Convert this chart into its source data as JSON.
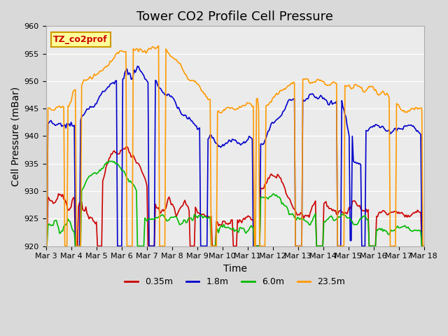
{
  "title": "Tower CO2 Profile Cell Pressure",
  "xlabel": "Time",
  "ylabel": "Cell Pressure (mBar)",
  "ylim": [
    920,
    960
  ],
  "xlim": [
    0,
    15
  ],
  "xtick_labels": [
    "Mar 3",
    "Mar 4",
    "Mar 5",
    "Mar 6",
    "Mar 7",
    "Mar 8",
    "Mar 9",
    "Mar 10",
    "Mar 11",
    "Mar 12",
    "Mar 13",
    "Mar 14",
    "Mar 15",
    "Mar 16",
    "Mar 17",
    "Mar 18"
  ],
  "xtick_positions": [
    0,
    1,
    2,
    3,
    4,
    5,
    6,
    7,
    8,
    9,
    10,
    11,
    12,
    13,
    14,
    15
  ],
  "ytick_labels": [
    "920",
    "925",
    "930",
    "935",
    "940",
    "945",
    "950",
    "955",
    "960"
  ],
  "ytick_positions": [
    920,
    925,
    930,
    935,
    940,
    945,
    950,
    955,
    960
  ],
  "series": {
    "0.35m": {
      "color": "#cc0000",
      "label": "0.35m"
    },
    "1.8m": {
      "color": "#0000cc",
      "label": "1.8m"
    },
    "6.0m": {
      "color": "#00bb00",
      "label": "6.0m"
    },
    "23.5m": {
      "color": "#ff9900",
      "label": "23.5m"
    }
  },
  "legend_label": "TZ_co2prof",
  "legend_box_color": "#ffff99",
  "legend_box_edge": "#cc9900",
  "title_fontsize": 13,
  "axis_label_fontsize": 10,
  "tick_fontsize": 8
}
